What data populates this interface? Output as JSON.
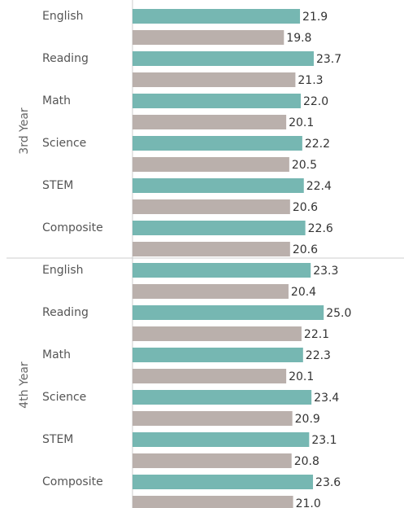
{
  "chart_data": {
    "type": "bar",
    "orientation": "horizontal",
    "xlim": [
      0,
      35.5
    ],
    "panels": [
      {
        "label": "3rd Year",
        "categories": [
          "English",
          "Reading",
          "Math",
          "Science",
          "STEM",
          "Composite"
        ],
        "series": [
          {
            "color": "#76b7b2",
            "values": [
              21.9,
              23.7,
              22.0,
              22.2,
              22.4,
              22.6
            ],
            "value_labels": [
              "21.9",
              "23.7",
              "22.0",
              "22.2",
              "22.4",
              "22.6"
            ]
          },
          {
            "color": "#bab0ac",
            "values": [
              19.8,
              21.3,
              20.1,
              20.5,
              20.6,
              20.6
            ],
            "value_labels": [
              "19.8",
              "21.3",
              "20.1",
              "20.5",
              "20.6",
              "20.6"
            ]
          }
        ]
      },
      {
        "label": "4th Year",
        "categories": [
          "English",
          "Reading",
          "Math",
          "Science",
          "STEM",
          "Composite"
        ],
        "series": [
          {
            "color": "#76b7b2",
            "values": [
              23.3,
              25.0,
              22.3,
              23.4,
              23.1,
              23.6
            ],
            "value_labels": [
              "23.3",
              "25.0",
              "22.3",
              "23.4",
              "23.1",
              "23.6"
            ]
          },
          {
            "color": "#bab0ac",
            "values": [
              20.4,
              22.1,
              20.1,
              20.9,
              20.8,
              21.0
            ],
            "value_labels": [
              "20.4",
              "22.1",
              "20.1",
              "20.9",
              "20.8",
              "21.0"
            ]
          }
        ]
      }
    ]
  }
}
